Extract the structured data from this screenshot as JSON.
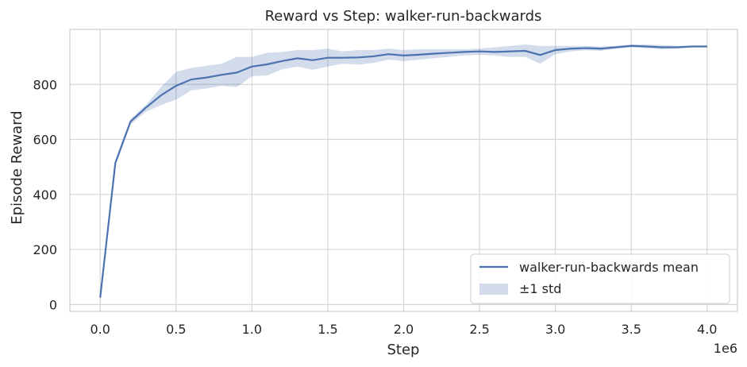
{
  "chart_data": {
    "type": "line",
    "title": "Reward vs Step: walker-run-backwards",
    "xlabel": "Step",
    "ylabel": "Episode Reward",
    "x_offset_label": "1e6",
    "xlim": [
      -0.2,
      4.2
    ],
    "ylim": [
      -25,
      1000
    ],
    "xticks": [
      0.0,
      0.5,
      1.0,
      1.5,
      2.0,
      2.5,
      3.0,
      3.5,
      4.0
    ],
    "xtick_labels": [
      "0.0",
      "0.5",
      "1.0",
      "1.5",
      "2.0",
      "2.5",
      "3.0",
      "3.5",
      "4.0"
    ],
    "yticks": [
      0,
      200,
      400,
      600,
      800
    ],
    "ytick_labels": [
      "0",
      "200",
      "400",
      "600",
      "800"
    ],
    "grid": true,
    "legend_position": "lower-right",
    "colors": {
      "mean": "#4c72b0",
      "band": "#4c72b0"
    },
    "x": [
      0.0,
      0.1,
      0.2,
      0.3,
      0.4,
      0.5,
      0.6,
      0.7,
      0.8,
      0.9,
      1.0,
      1.1,
      1.2,
      1.3,
      1.4,
      1.5,
      1.6,
      1.7,
      1.8,
      1.9,
      2.0,
      2.1,
      2.2,
      2.3,
      2.4,
      2.5,
      2.6,
      2.7,
      2.8,
      2.9,
      3.0,
      3.1,
      3.2,
      3.3,
      3.4,
      3.5,
      3.6,
      3.7,
      3.8,
      3.9,
      4.0
    ],
    "series": [
      {
        "name": "walker-run-backwards mean",
        "values": [
          25,
          515,
          665,
          715,
          760,
          795,
          818,
          825,
          835,
          843,
          865,
          873,
          885,
          895,
          888,
          897,
          897,
          898,
          902,
          910,
          905,
          908,
          912,
          915,
          918,
          920,
          918,
          920,
          922,
          907,
          925,
          930,
          932,
          930,
          935,
          940,
          938,
          935,
          935,
          938,
          938
        ]
      }
    ],
    "band": {
      "name": "±1 std",
      "upper": [
        35,
        525,
        675,
        725,
        790,
        845,
        860,
        868,
        875,
        900,
        900,
        915,
        918,
        925,
        925,
        930,
        920,
        925,
        925,
        930,
        925,
        928,
        928,
        928,
        928,
        930,
        935,
        940,
        945,
        940,
        940,
        940,
        940,
        938,
        940,
        945,
        945,
        943,
        940,
        940,
        940
      ],
      "lower": [
        15,
        505,
        655,
        700,
        725,
        745,
        778,
        785,
        795,
        790,
        830,
        833,
        855,
        865,
        853,
        865,
        875,
        872,
        878,
        890,
        885,
        890,
        895,
        900,
        905,
        908,
        905,
        900,
        900,
        875,
        910,
        920,
        924,
        922,
        930,
        935,
        932,
        928,
        930,
        935,
        935
      ]
    }
  }
}
